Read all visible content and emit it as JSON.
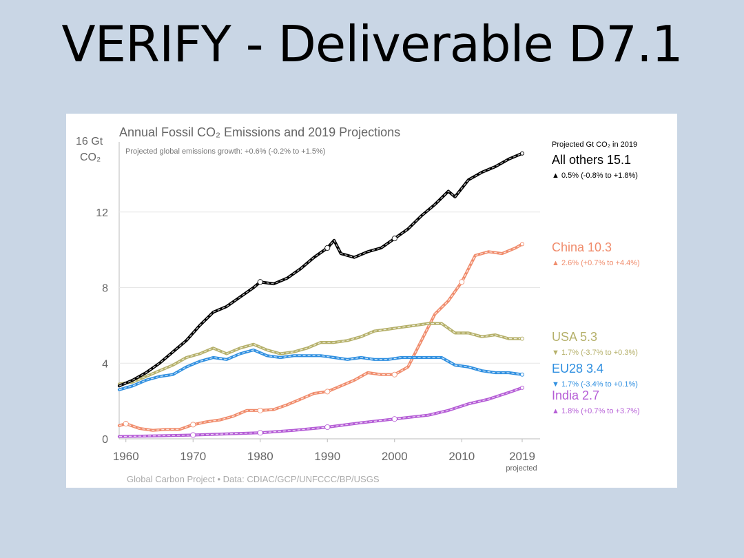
{
  "slide": {
    "title": "VERIFY - Deliverable D7.1"
  },
  "colors": {
    "background": "#c9d6e5",
    "all_others": "#000000",
    "china": "#f08c6c",
    "usa": "#b5b06a",
    "eu28": "#2f8fe0",
    "india": "#b55dd6"
  },
  "chart_data": {
    "type": "line",
    "title": "Annual Fossil CO₂ Emissions and 2019 Projections",
    "subtitle": "Projected global emissions growth: +0.6% (-0.2% to +1.5%)",
    "ylabel_line1": "16 Gt",
    "ylabel_line2": "CO₂",
    "ylim": [
      0,
      16
    ],
    "yticks": [
      0,
      4,
      8,
      12
    ],
    "xlim": [
      1959,
      2019
    ],
    "xticks": [
      "1960",
      "1970",
      "1980",
      "1990",
      "2000",
      "2010",
      "2019"
    ],
    "xtick_note": "projected",
    "legend_header": "Projected Gt CO₂ in 2019",
    "credit": "Global Carbon Project  •  Data: CDIAC/GCP/UNFCCC/BP/USGS",
    "grid": true,
    "series": [
      {
        "key": "all_others",
        "name": "All others",
        "value_2019": "15.1",
        "marker": "▲",
        "growth": "0.5% (-0.8% to +1.8%)",
        "x": [
          1959,
          1961,
          1963,
          1965,
          1967,
          1969,
          1971,
          1973,
          1975,
          1977,
          1979,
          1980,
          1982,
          1984,
          1986,
          1988,
          1990,
          1991,
          1992,
          1994,
          1996,
          1998,
          2000,
          2002,
          2004,
          2006,
          2008,
          2009,
          2011,
          2013,
          2015,
          2017,
          2019
        ],
        "y": [
          2.8,
          3.1,
          3.5,
          4.0,
          4.6,
          5.2,
          6.0,
          6.7,
          7.0,
          7.5,
          8.0,
          8.3,
          8.2,
          8.5,
          9.0,
          9.6,
          10.1,
          10.5,
          9.8,
          9.6,
          9.9,
          10.1,
          10.6,
          11.1,
          11.8,
          12.4,
          13.1,
          12.8,
          13.7,
          14.1,
          14.4,
          14.8,
          15.1
        ]
      },
      {
        "key": "china",
        "name": "China",
        "value_2019": "10.3",
        "marker": "▲",
        "growth": "2.6% (+0.7% to +4.4%)",
        "x": [
          1959,
          1960,
          1962,
          1964,
          1966,
          1968,
          1970,
          1972,
          1974,
          1976,
          1978,
          1980,
          1982,
          1984,
          1986,
          1988,
          1990,
          1992,
          1994,
          1996,
          1998,
          2000,
          2002,
          2004,
          2006,
          2008,
          2010,
          2012,
          2014,
          2016,
          2018,
          2019
        ],
        "y": [
          0.7,
          0.8,
          0.55,
          0.45,
          0.5,
          0.5,
          0.75,
          0.9,
          1.0,
          1.2,
          1.5,
          1.5,
          1.55,
          1.8,
          2.1,
          2.4,
          2.5,
          2.8,
          3.1,
          3.5,
          3.4,
          3.4,
          3.8,
          5.2,
          6.6,
          7.3,
          8.3,
          9.7,
          9.9,
          9.8,
          10.1,
          10.3
        ]
      },
      {
        "key": "usa",
        "name": "USA",
        "value_2019": "5.3",
        "marker": "▼",
        "growth": "1.7% (-3.7% to +0.3%)",
        "x": [
          1959,
          1961,
          1963,
          1965,
          1967,
          1969,
          1971,
          1973,
          1975,
          1977,
          1979,
          1981,
          1983,
          1985,
          1987,
          1989,
          1991,
          1993,
          1995,
          1997,
          1999,
          2001,
          2003,
          2005,
          2007,
          2009,
          2011,
          2013,
          2015,
          2017,
          2019
        ],
        "y": [
          2.9,
          3.0,
          3.3,
          3.6,
          3.9,
          4.3,
          4.5,
          4.8,
          4.5,
          4.8,
          5.0,
          4.7,
          4.5,
          4.6,
          4.8,
          5.1,
          5.1,
          5.2,
          5.4,
          5.7,
          5.8,
          5.9,
          6.0,
          6.1,
          6.1,
          5.6,
          5.6,
          5.4,
          5.5,
          5.3,
          5.3
        ]
      },
      {
        "key": "eu28",
        "name": "EU28",
        "value_2019": "3.4",
        "marker": "▼",
        "growth": "1.7% (-3.4% to +0.1%)",
        "x": [
          1959,
          1961,
          1963,
          1965,
          1967,
          1969,
          1971,
          1973,
          1975,
          1977,
          1979,
          1981,
          1983,
          1985,
          1987,
          1989,
          1991,
          1993,
          1995,
          1997,
          1999,
          2001,
          2003,
          2005,
          2007,
          2009,
          2011,
          2013,
          2015,
          2017,
          2019
        ],
        "y": [
          2.6,
          2.8,
          3.1,
          3.3,
          3.4,
          3.8,
          4.1,
          4.3,
          4.2,
          4.5,
          4.7,
          4.4,
          4.3,
          4.4,
          4.4,
          4.4,
          4.3,
          4.2,
          4.3,
          4.2,
          4.2,
          4.3,
          4.3,
          4.3,
          4.3,
          3.9,
          3.8,
          3.6,
          3.5,
          3.5,
          3.4
        ]
      },
      {
        "key": "india",
        "name": "India",
        "value_2019": "2.7",
        "marker": "▲",
        "growth": "1.8% (+0.7% to +3.7%)",
        "x": [
          1959,
          1965,
          1970,
          1975,
          1980,
          1985,
          1990,
          1995,
          2000,
          2005,
          2008,
          2011,
          2014,
          2017,
          2019
        ],
        "y": [
          0.12,
          0.16,
          0.2,
          0.26,
          0.32,
          0.45,
          0.62,
          0.85,
          1.05,
          1.25,
          1.5,
          1.85,
          2.1,
          2.45,
          2.7
        ]
      }
    ]
  }
}
